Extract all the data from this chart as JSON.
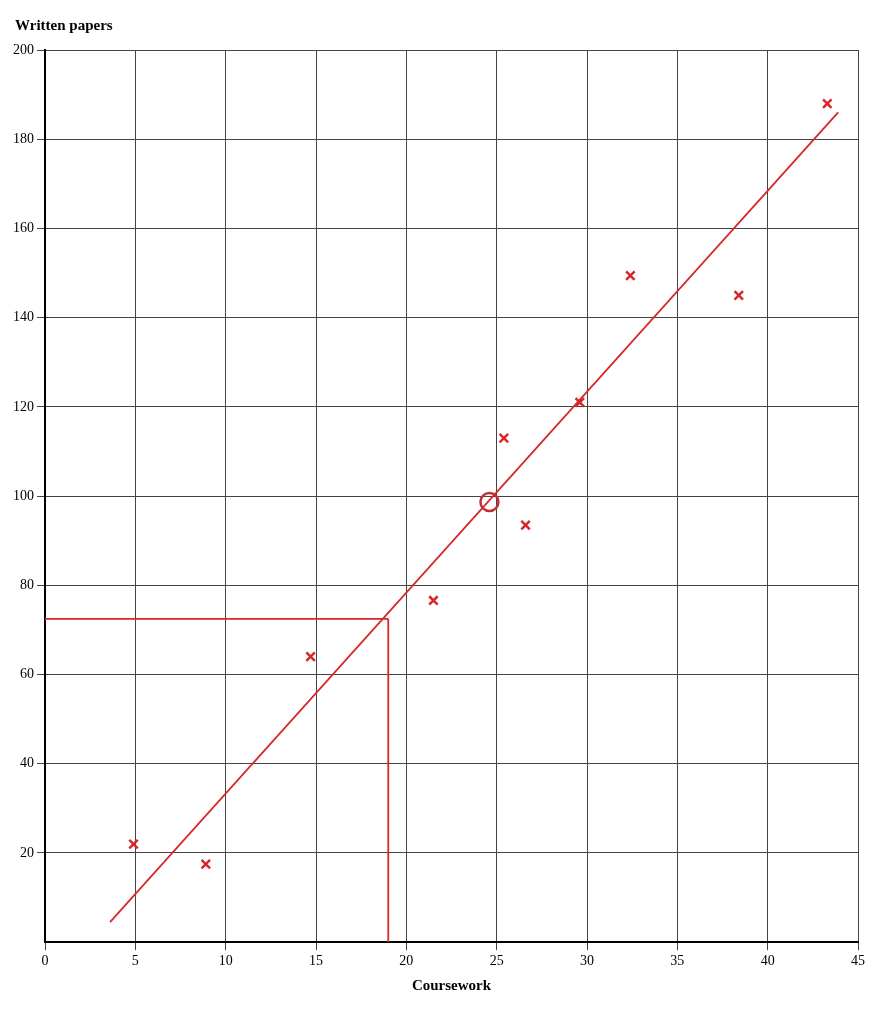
{
  "chart_data": {
    "type": "scatter",
    "xlabel": "Coursework",
    "ylabel": "Written papers",
    "xlim": [
      0,
      45
    ],
    "xticks": [
      0,
      5,
      10,
      15,
      20,
      25,
      30,
      35,
      40,
      45
    ],
    "ylim": [
      0,
      200
    ],
    "yticks": [
      20,
      40,
      60,
      80,
      100,
      120,
      140,
      160,
      180,
      200
    ],
    "grid": true,
    "legend": false,
    "marker": "cross",
    "series": [
      {
        "color": "#d62828",
        "x": [
          4.9,
          8.9,
          14.7,
          21.5,
          25.4,
          26.6,
          29.6,
          32.4,
          38.4,
          43.3
        ],
        "values": [
          22,
          17.5,
          64,
          76.6,
          113,
          93.5,
          121,
          149.4,
          145,
          188
        ]
      },
      {
        "color": "#c0303a",
        "marker": "circle",
        "x": [
          24.6
        ],
        "values": [
          98.7
        ]
      },
      {
        "type": "line",
        "marker": "none",
        "color": "#d62828",
        "x": [
          3.6,
          43.9
        ],
        "values": [
          4.5,
          186
        ]
      },
      {
        "type": "line",
        "marker": "none",
        "color": "#d62828",
        "x": [
          19,
          19
        ],
        "values": [
          0,
          72.5
        ]
      },
      {
        "type": "line",
        "marker": "none",
        "color": "#d62828",
        "x": [
          0,
          19
        ],
        "values": [
          72.5,
          72.5
        ]
      }
    ]
  }
}
